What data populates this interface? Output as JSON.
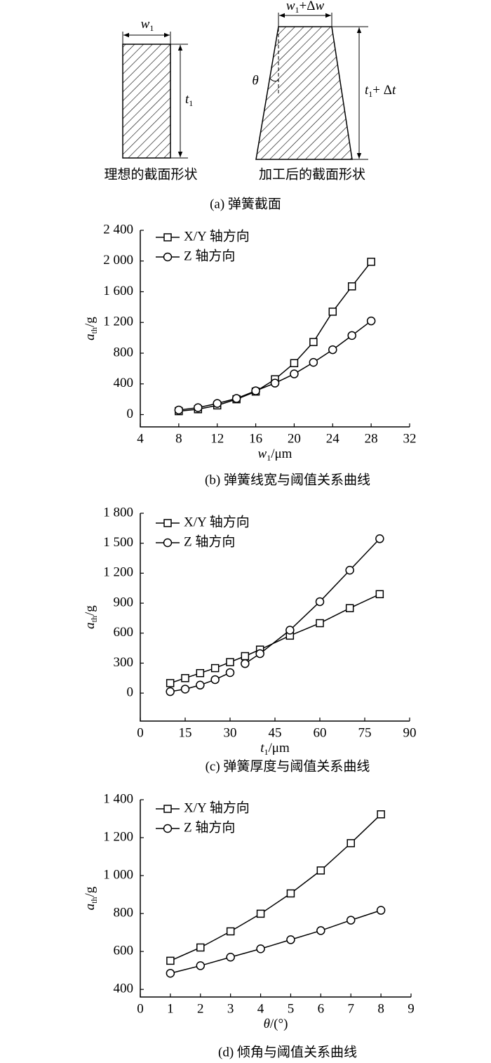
{
  "diagram": {
    "w_left": [
      "w",
      "1"
    ],
    "t_left": [
      "t",
      "1"
    ],
    "w_right": [
      "w",
      "1",
      "+Δ",
      "w"
    ],
    "t_right": [
      "t",
      "1",
      "+ Δ",
      "t"
    ],
    "theta": "θ",
    "label_left": "理想的截面形状",
    "label_right": "加工后的截面形状",
    "caption": "(a) 弹簧截面"
  },
  "chart_data": [
    {
      "type": "line",
      "caption": "(b) 弹簧线宽与阈值关系曲线",
      "xlabel": [
        "w",
        "1",
        "/μm"
      ],
      "ylabel": [
        "a",
        "th",
        "/g"
      ],
      "x": [
        8,
        10,
        12,
        14,
        16,
        18,
        20,
        22,
        24,
        26,
        28
      ],
      "series": [
        {
          "name": "X/Y 轴方向",
          "marker": "square",
          "color": "#000000",
          "values": [
            45,
            70,
            120,
            200,
            300,
            460,
            670,
            945,
            1340,
            1670,
            1990
          ]
        },
        {
          "name": "Z 轴方向",
          "marker": "circle",
          "color": "#000000",
          "values": [
            60,
            90,
            145,
            210,
            310,
            410,
            530,
            680,
            845,
            1030,
            1220
          ]
        }
      ],
      "xlim": [
        4,
        32
      ],
      "xticks": [
        4,
        8,
        12,
        16,
        20,
        24,
        28,
        32
      ],
      "ylim": [
        -160,
        2400
      ],
      "yticks": [
        0,
        400,
        800,
        {
          "value": 1200,
          "label": "1 200"
        },
        {
          "value": 1600,
          "label": "1 600"
        },
        {
          "value": 2000,
          "label": "2 000"
        },
        {
          "value": 2400,
          "label": "2 400"
        }
      ],
      "legend": "upper left",
      "grid": false
    },
    {
      "type": "line",
      "caption": "(c) 弹簧厚度与阈值关系曲线",
      "xlabel": [
        "t",
        "1",
        "/μm"
      ],
      "ylabel": [
        "a",
        "th",
        "/g"
      ],
      "x": [
        10,
        15,
        20,
        25,
        30,
        35,
        40,
        50,
        60,
        70,
        80
      ],
      "series": [
        {
          "name": "X/Y 轴方向",
          "marker": "square",
          "color": "#000000",
          "values": [
            100,
            150,
            200,
            250,
            310,
            370,
            435,
            575,
            700,
            850,
            990
          ]
        },
        {
          "name": "Z 轴方向",
          "marker": "circle",
          "color": "#000000",
          "x": [
            10,
            15,
            20,
            25,
            30,
            null,
            35,
            40,
            50,
            60,
            70,
            80
          ],
          "values": [
            15,
            40,
            80,
            135,
            205,
            null,
            295,
            395,
            630,
            915,
            1230,
            1545
          ]
        }
      ],
      "xlim": [
        0,
        90
      ],
      "xticks": [
        0,
        15,
        30,
        45,
        60,
        75,
        90
      ],
      "ylim": [
        -280,
        1800
      ],
      "yticks": [
        0,
        300,
        600,
        900,
        {
          "value": 1200,
          "label": "1 200"
        },
        {
          "value": 1500,
          "label": "1 500"
        },
        {
          "value": 1800,
          "label": "1 800"
        }
      ],
      "legend": "upper left",
      "grid": false
    },
    {
      "type": "line",
      "caption": "(d) 倾角与阈值关系曲线",
      "xlabel": [
        "θ",
        "/(°)"
      ],
      "ylabel": [
        "a",
        "th",
        "/g"
      ],
      "x": [
        1,
        2,
        3,
        4,
        5,
        6,
        7,
        8
      ],
      "series": [
        {
          "name": "X/Y 轴方向",
          "marker": "square",
          "color": "#000000",
          "values": [
            551,
            621,
            706,
            799,
            906,
            1027,
            1171,
            1323
          ]
        },
        {
          "name": "Z 轴方向",
          "marker": "circle",
          "color": "#000000",
          "values": [
            485,
            525,
            570,
            614,
            662,
            710,
            765,
            817
          ]
        }
      ],
      "xlim": [
        0,
        9
      ],
      "xticks": [
        0,
        1,
        2,
        3,
        4,
        5,
        6,
        7,
        8,
        9
      ],
      "ylim": [
        360,
        1400
      ],
      "yticks": [
        400,
        600,
        800,
        {
          "value": 1000,
          "label": "1 000"
        },
        {
          "value": 1200,
          "label": "1 200"
        },
        {
          "value": 1400,
          "label": "1 400"
        }
      ],
      "legend": "upper left",
      "grid": false
    }
  ]
}
